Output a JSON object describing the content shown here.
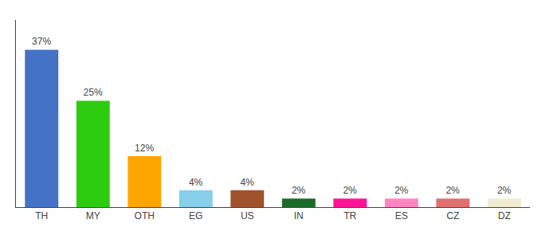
{
  "chart_data": {
    "type": "bar",
    "categories": [
      "TH",
      "MY",
      "OTH",
      "EG",
      "US",
      "IN",
      "TR",
      "ES",
      "CZ",
      "DZ"
    ],
    "values": [
      37,
      25,
      12,
      4,
      4,
      2,
      2,
      2,
      2,
      2
    ],
    "value_labels": [
      "37%",
      "25%",
      "12%",
      "4%",
      "4%",
      "2%",
      "2%",
      "2%",
      "2%",
      "2%"
    ],
    "colors": [
      "#4472C4",
      "#2ECC11",
      "#FFA500",
      "#87CEEB",
      "#A0522D",
      "#1A6B2A",
      "#FF1493",
      "#FF85C0",
      "#E07070",
      "#F0EAD0"
    ],
    "ylim": [
      0,
      44
    ],
    "data_labels": true,
    "tick_labels": "x",
    "grid": false
  }
}
